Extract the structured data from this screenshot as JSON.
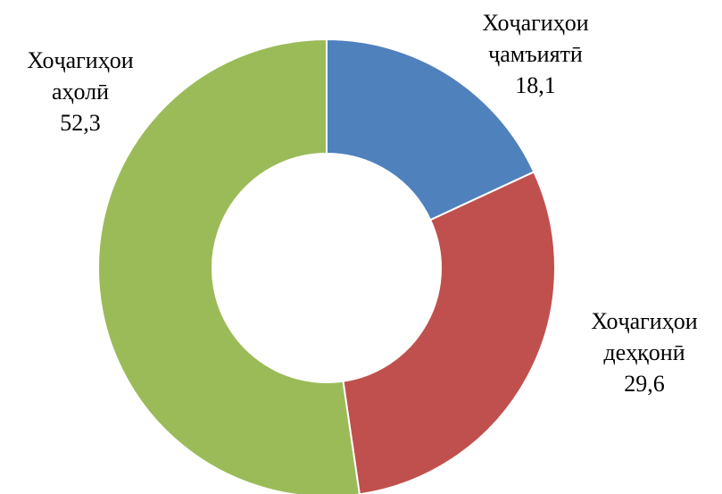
{
  "chart_data": {
    "type": "donut",
    "categories": [
      "Хоҷагиҳои ҷамъиятӣ",
      "Хоҷагиҳои деҳқонӣ",
      "Хоҷагиҳои аҳолӣ"
    ],
    "values": [
      18.1,
      29.6,
      52.3
    ],
    "value_labels": [
      "18,1",
      "29,6",
      "52,3"
    ],
    "colors": [
      "#4f81bd",
      "#c0504d",
      "#9bbb59"
    ]
  }
}
